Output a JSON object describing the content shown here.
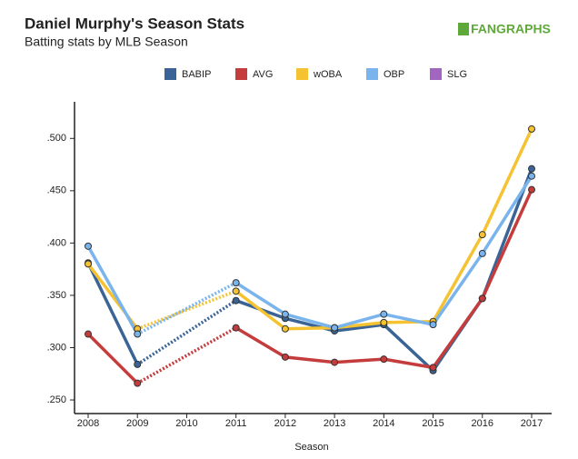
{
  "chart_data": {
    "type": "line",
    "title": "Daniel Murphy's Season Stats",
    "subtitle": "Batting stats by MLB Season",
    "logo": "FANGRAPHS",
    "x_label": "Season",
    "categories": [
      "2008",
      "2009",
      "2010",
      "2011",
      "2012",
      "2013",
      "2014",
      "2015",
      "2016",
      "2017"
    ],
    "series": [
      {
        "name": "BABIP",
        "color": "#3b6496",
        "values": [
          0.381,
          0.284,
          null,
          0.345,
          0.328,
          0.316,
          0.322,
          0.278,
          0.347,
          0.471
        ]
      },
      {
        "name": "AVG",
        "color": "#c43c3c",
        "values": [
          0.313,
          0.266,
          null,
          0.319,
          0.291,
          0.286,
          0.289,
          0.281,
          0.347,
          0.451
        ]
      },
      {
        "name": "wOBA",
        "color": "#f5c332",
        "values": [
          0.38,
          0.318,
          null,
          0.354,
          0.318,
          0.319,
          0.324,
          0.325,
          0.408,
          0.509
        ]
      },
      {
        "name": "OBP",
        "color": "#7ab4ec",
        "values": [
          0.397,
          0.313,
          null,
          0.362,
          0.332,
          0.319,
          0.332,
          0.322,
          0.39,
          0.464
        ]
      },
      {
        "name": "SLG",
        "color": "#a166c2",
        "values": [
          null,
          null,
          null,
          null,
          null,
          null,
          null,
          null,
          null,
          null
        ]
      }
    ],
    "ylim": [
      0.237,
      0.535
    ],
    "yticks": [
      {
        "value": 0.25,
        "label": ".250"
      },
      {
        "value": 0.3,
        "label": ".300"
      },
      {
        "value": 0.35,
        "label": ".350"
      },
      {
        "value": 0.4,
        "label": ".400"
      },
      {
        "value": 0.45,
        "label": ".450"
      },
      {
        "value": 0.5,
        "label": ".500"
      }
    ],
    "legend": "top"
  }
}
